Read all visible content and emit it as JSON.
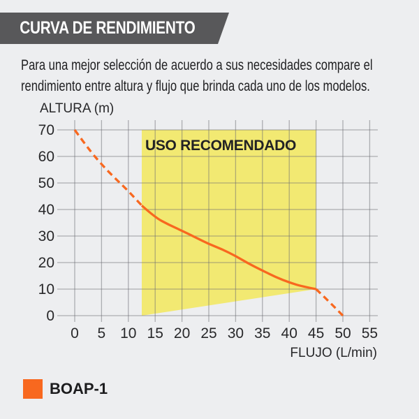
{
  "header": {
    "title": "CURVA DE RENDIMIENTO"
  },
  "description": {
    "line1": "Para una mejor selección de acuerdo a sus necesidades compare el",
    "line2": "rendimiento entre altura y flujo que brinda cada uno de los modelos."
  },
  "ui_colors": {
    "background": "#edeef0",
    "banner_bg": "#58585a",
    "banner_text": "#ffffff",
    "grid": "#aeaeb1",
    "zone_fill": "#f2e972",
    "curve_orange": "#f8681f",
    "text": "#1f1f21"
  },
  "chart_data": {
    "type": "line",
    "title": "",
    "xlabel": "FLUJO (L/min)",
    "ylabel": "ALTURA (m)",
    "xlim": [
      0,
      55
    ],
    "ylim": [
      0,
      70
    ],
    "xticks": [
      0,
      5,
      10,
      15,
      20,
      25,
      30,
      35,
      40,
      45,
      50,
      55
    ],
    "yticks": [
      0,
      10,
      20,
      30,
      40,
      50,
      60,
      70
    ],
    "grid": "on",
    "legend_position": "bottom-left",
    "recommended_zone": {
      "label": "USO RECOMENDADO",
      "polygon": [
        [
          12.5,
          0
        ],
        [
          12.5,
          70
        ],
        [
          45,
          70
        ],
        [
          45,
          10
        ]
      ],
      "fill": "#f2e972"
    },
    "series": [
      {
        "name": "BOAP-1",
        "color": "#f8681f",
        "segments": [
          {
            "style": "dashed",
            "points": [
              [
                0,
                70
              ],
              [
                2.5,
                63
              ],
              [
                5,
                57
              ],
              [
                7.5,
                51.8
              ],
              [
                10,
                47
              ],
              [
                12.5,
                41.5
              ]
            ]
          },
          {
            "style": "solid",
            "points": [
              [
                12.5,
                41.5
              ],
              [
                15,
                37
              ],
              [
                17.5,
                34.3
              ],
              [
                20,
                32
              ],
              [
                22.5,
                29.5
              ],
              [
                25,
                27
              ],
              [
                27.5,
                25
              ],
              [
                30,
                22.5
              ],
              [
                32.5,
                19.5
              ],
              [
                35,
                17
              ],
              [
                37.5,
                14.5
              ],
              [
                40,
                12.5
              ],
              [
                42.5,
                11
              ],
              [
                45,
                10
              ]
            ]
          },
          {
            "style": "dashed",
            "points": [
              [
                45,
                10
              ],
              [
                47.5,
                5.2
              ],
              [
                50,
                0
              ]
            ]
          }
        ]
      }
    ]
  }
}
